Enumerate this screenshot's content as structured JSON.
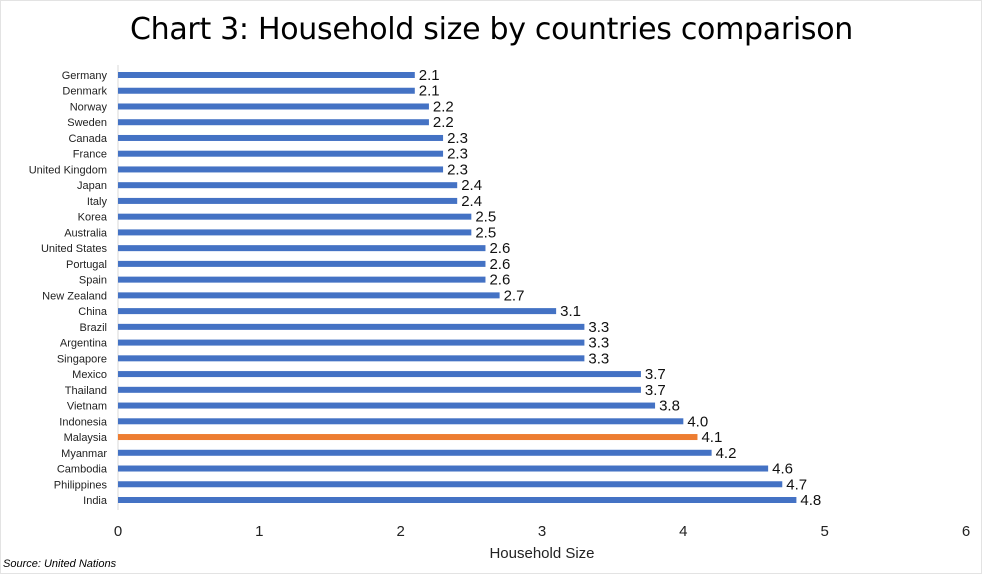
{
  "chart_data": {
    "type": "bar",
    "orientation": "horizontal",
    "title": "Chart 3: Household size by countries comparison",
    "xlabel": "Household Size",
    "ylabel": "",
    "xlim": [
      0,
      6
    ],
    "xticks": [
      "0",
      "1",
      "2",
      "3",
      "4",
      "5",
      "6"
    ],
    "grid": false,
    "legend": "none",
    "bar_color": "#4472C4",
    "highlight_color": "#ED7D31",
    "highlight_category": "Malaysia",
    "categories": [
      "Germany",
      "Denmark",
      "Norway",
      "Sweden",
      "Canada",
      "France",
      "United Kingdom",
      "Japan",
      "Italy",
      "Korea",
      "Australia",
      "United States",
      "Portugal",
      "Spain",
      "New Zealand",
      "China",
      "Brazil",
      "Argentina",
      "Singapore",
      "Mexico",
      "Thailand",
      "Vietnam",
      "Indonesia",
      "Malaysia",
      "Myanmar",
      "Cambodia",
      "Philippines",
      "India"
    ],
    "values": [
      2.1,
      2.1,
      2.2,
      2.2,
      2.3,
      2.3,
      2.3,
      2.4,
      2.4,
      2.5,
      2.5,
      2.6,
      2.6,
      2.6,
      2.7,
      3.1,
      3.3,
      3.3,
      3.3,
      3.7,
      3.7,
      3.8,
      4.0,
      4.1,
      4.2,
      4.6,
      4.7,
      4.8
    ],
    "data_labels": [
      "2.1",
      "2.1",
      "2.2",
      "2.2",
      "2.3",
      "2.3",
      "2.3",
      "2.4",
      "2.4",
      "2.5",
      "2.5",
      "2.6",
      "2.6",
      "2.6",
      "2.7",
      "3.1",
      "3.3",
      "3.3",
      "3.3",
      "3.7",
      "3.7",
      "3.8",
      "4.0",
      "4.1",
      "4.2",
      "4.6",
      "4.7",
      "4.8"
    ]
  },
  "source": "Source: United Nations"
}
